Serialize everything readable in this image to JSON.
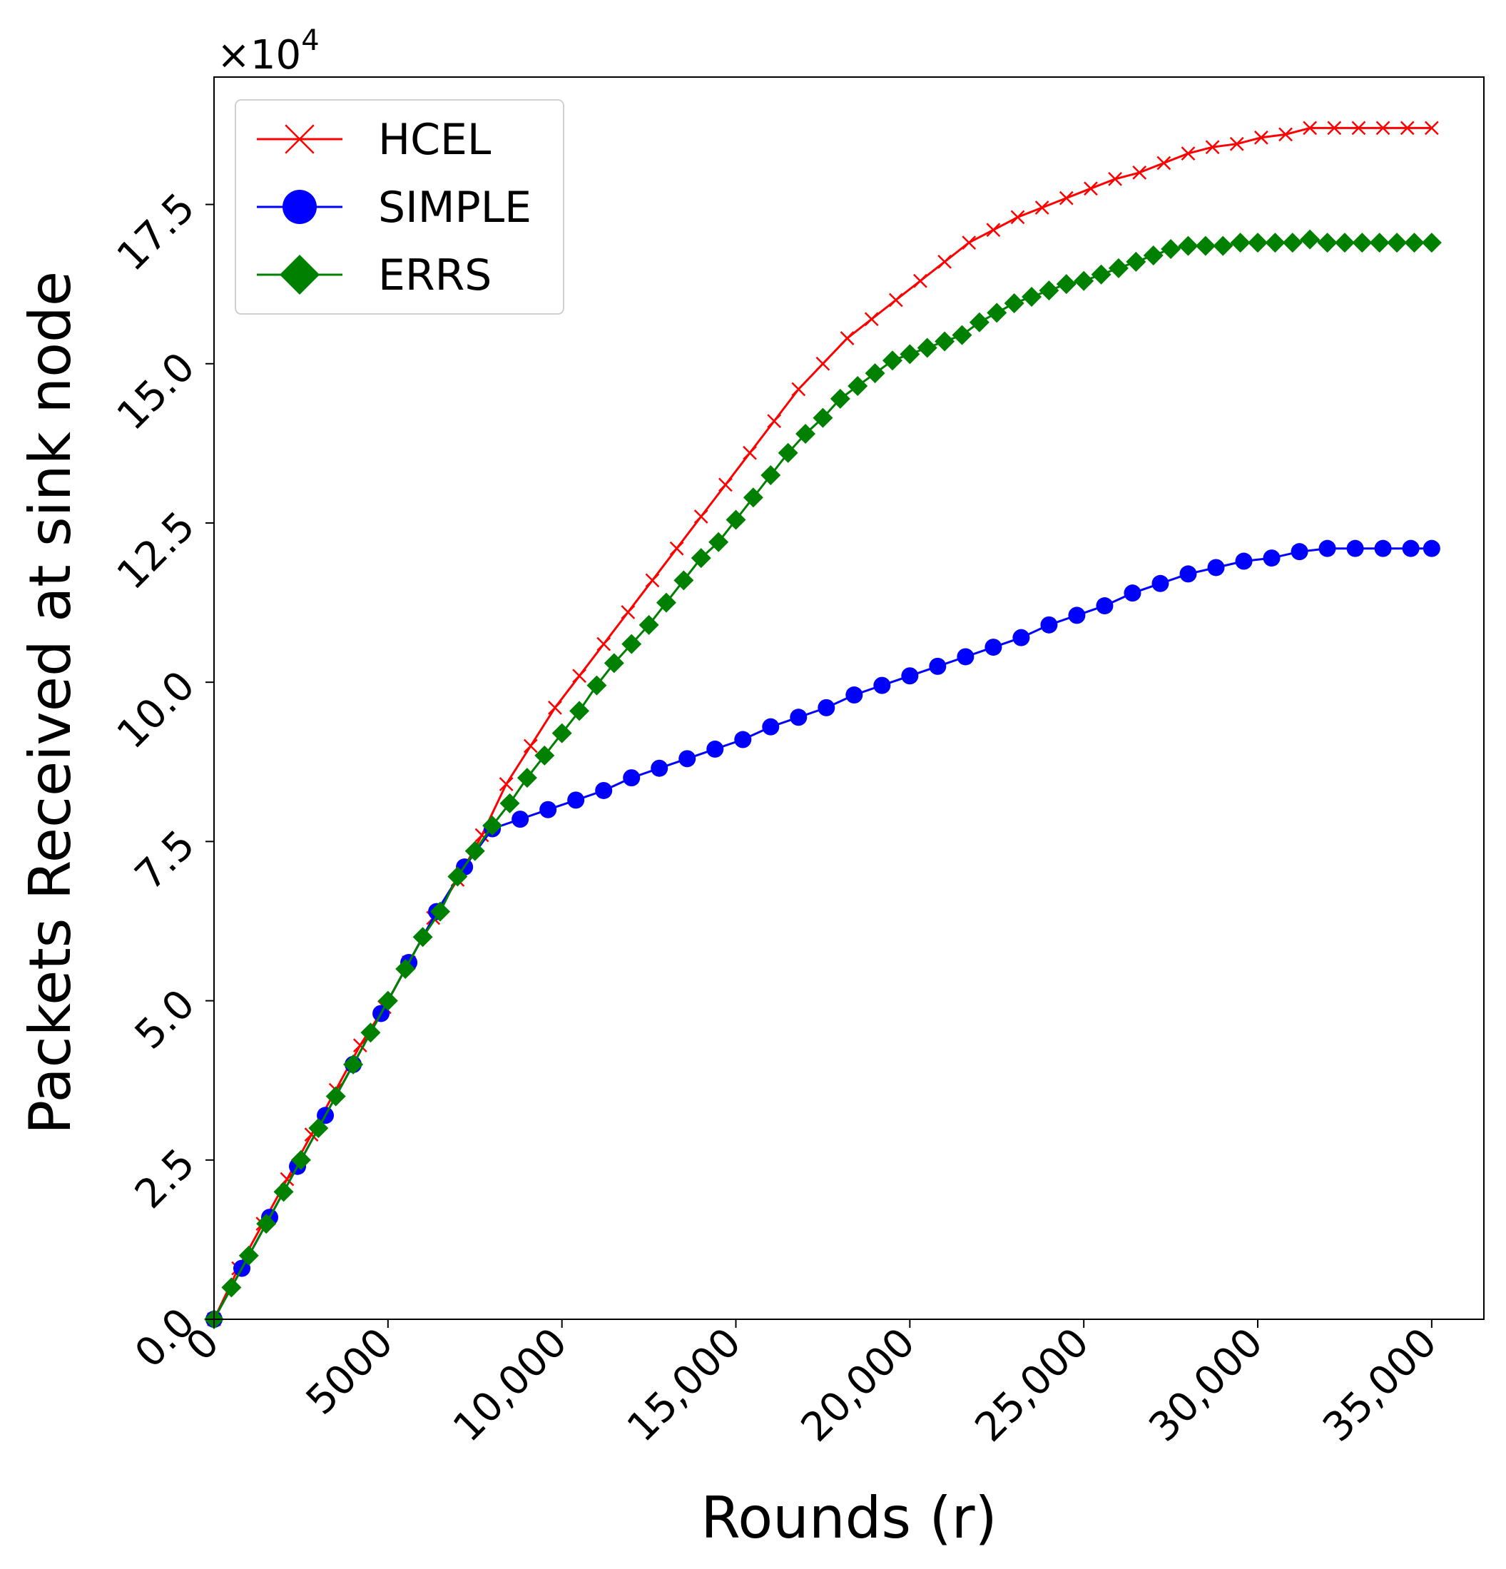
{
  "chart_data": {
    "type": "line",
    "title": "",
    "xlabel": "Rounds (r)",
    "ylabel": "Packets Received at sink node",
    "y_scale_prefix": "×10",
    "y_scale_exponent": "4",
    "xlim": [
      0,
      36500
    ],
    "ylim": [
      0,
      19.5
    ],
    "x_ticks": [
      {
        "value": 0,
        "label": "0"
      },
      {
        "value": 5000,
        "label": "5000"
      },
      {
        "value": 10000,
        "label": "10,000"
      },
      {
        "value": 15000,
        "label": "15,000"
      },
      {
        "value": 20000,
        "label": "20,000"
      },
      {
        "value": 25000,
        "label": "25,000"
      },
      {
        "value": 30000,
        "label": "30,000"
      },
      {
        "value": 35000,
        "label": "35,000"
      }
    ],
    "y_ticks": [
      {
        "value": 0,
        "label": "0.0"
      },
      {
        "value": 2.5,
        "label": "2.5"
      },
      {
        "value": 5,
        "label": "5.0"
      },
      {
        "value": 7.5,
        "label": "7.5"
      },
      {
        "value": 10,
        "label": "10.0"
      },
      {
        "value": 12.5,
        "label": "12.5"
      },
      {
        "value": 15,
        "label": "15.0"
      },
      {
        "value": 17.5,
        "label": "17.5"
      }
    ],
    "grid": false,
    "legend_position": "top-left",
    "series": [
      {
        "name": "HCEL",
        "color": "#ff0000",
        "marker": "x",
        "x": [
          0,
          700,
          1400,
          2100,
          2800,
          3500,
          4200,
          4900,
          5600,
          6300,
          7000,
          7700,
          8400,
          9100,
          9800,
          10500,
          11200,
          11900,
          12600,
          13300,
          14000,
          14700,
          15400,
          16100,
          16800,
          17500,
          18200,
          18900,
          19600,
          20300,
          21000,
          21700,
          22400,
          23100,
          23800,
          24500,
          25200,
          25900,
          26600,
          27300,
          28000,
          28700,
          29400,
          30100,
          30800,
          31500,
          32200,
          32900,
          33600,
          34300,
          35000
        ],
        "values": [
          0,
          0.8,
          1.5,
          2.2,
          2.9,
          3.6,
          4.3,
          4.9,
          5.6,
          6.3,
          6.9,
          7.6,
          8.4,
          9.0,
          9.6,
          10.1,
          10.6,
          11.1,
          11.6,
          12.1,
          12.6,
          13.1,
          13.6,
          14.1,
          14.6,
          15.0,
          15.4,
          15.7,
          16.0,
          16.3,
          16.6,
          16.9,
          17.1,
          17.3,
          17.45,
          17.6,
          17.75,
          17.9,
          18.0,
          18.15,
          18.3,
          18.4,
          18.45,
          18.55,
          18.6,
          18.7,
          18.7,
          18.7,
          18.7,
          18.7,
          18.7
        ]
      },
      {
        "name": "SIMPLE",
        "color": "#0000ff",
        "marker": "o",
        "x": [
          0,
          800,
          1600,
          2400,
          3200,
          4000,
          4800,
          5600,
          6400,
          7200,
          8000,
          8800,
          9600,
          10400,
          11200,
          12000,
          12800,
          13600,
          14400,
          15200,
          16000,
          16800,
          17600,
          18400,
          19200,
          20000,
          20800,
          21600,
          22400,
          23200,
          24000,
          24800,
          25600,
          26400,
          27200,
          28000,
          28800,
          29600,
          30400,
          31200,
          32000,
          32800,
          33600,
          34400,
          35000
        ],
        "values": [
          0,
          0.8,
          1.6,
          2.4,
          3.2,
          4.0,
          4.8,
          5.6,
          6.4,
          7.1,
          7.7,
          7.85,
          8.0,
          8.15,
          8.3,
          8.5,
          8.65,
          8.8,
          8.95,
          9.1,
          9.3,
          9.45,
          9.6,
          9.8,
          9.95,
          10.1,
          10.25,
          10.4,
          10.55,
          10.7,
          10.9,
          11.05,
          11.2,
          11.4,
          11.55,
          11.7,
          11.8,
          11.9,
          11.95,
          12.05,
          12.1,
          12.1,
          12.1,
          12.1,
          12.1
        ]
      },
      {
        "name": "ERRS",
        "color": "#008000",
        "marker": "D",
        "x": [
          0,
          500,
          1000,
          1500,
          2000,
          2500,
          3000,
          3500,
          4000,
          4500,
          5000,
          5500,
          6000,
          6500,
          7000,
          7500,
          8000,
          8500,
          9000,
          9500,
          10000,
          10500,
          11000,
          11500,
          12000,
          12500,
          13000,
          13500,
          14000,
          14500,
          15000,
          15500,
          16000,
          16500,
          17000,
          17500,
          18000,
          18500,
          19000,
          19500,
          20000,
          20500,
          21000,
          21500,
          22000,
          22500,
          23000,
          23500,
          24000,
          24500,
          25000,
          25500,
          26000,
          26500,
          27000,
          27500,
          28000,
          28500,
          29000,
          29500,
          30000,
          30500,
          31000,
          31500,
          32000,
          32500,
          33000,
          33500,
          34000,
          34500,
          35000
        ],
        "values": [
          0,
          0.5,
          1.0,
          1.5,
          2.0,
          2.5,
          3.0,
          3.5,
          4.0,
          4.5,
          5.0,
          5.5,
          6.0,
          6.4,
          6.95,
          7.35,
          7.75,
          8.1,
          8.5,
          8.85,
          9.2,
          9.55,
          9.95,
          10.3,
          10.6,
          10.9,
          11.25,
          11.6,
          11.95,
          12.2,
          12.55,
          12.9,
          13.25,
          13.6,
          13.9,
          14.15,
          14.45,
          14.65,
          14.85,
          15.05,
          15.15,
          15.25,
          15.35,
          15.45,
          15.65,
          15.8,
          15.95,
          16.05,
          16.15,
          16.25,
          16.3,
          16.4,
          16.5,
          16.6,
          16.7,
          16.8,
          16.85,
          16.85,
          16.85,
          16.9,
          16.9,
          16.9,
          16.9,
          16.95,
          16.9,
          16.9,
          16.9,
          16.9,
          16.9,
          16.9,
          16.9
        ]
      }
    ]
  }
}
